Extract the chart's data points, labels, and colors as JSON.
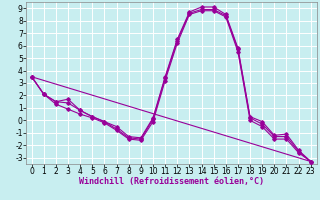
{
  "xlabel": "Windchill (Refroidissement éolien,°C)",
  "bg_color": "#c8eef0",
  "grid_color": "#ffffff",
  "line_color": "#990099",
  "xlim": [
    -0.5,
    23.5
  ],
  "ylim": [
    -3.5,
    9.5
  ],
  "xticks": [
    0,
    1,
    2,
    3,
    4,
    5,
    6,
    7,
    8,
    9,
    10,
    11,
    12,
    13,
    14,
    15,
    16,
    17,
    18,
    19,
    20,
    21,
    22,
    23
  ],
  "yticks": [
    -3,
    -2,
    -1,
    0,
    1,
    2,
    3,
    4,
    5,
    6,
    7,
    8,
    9
  ],
  "line1_x": [
    0,
    1,
    2,
    3,
    4,
    5,
    6,
    7,
    8,
    9,
    10,
    11,
    12,
    13,
    14,
    15,
    16,
    17,
    18,
    19,
    20,
    21,
    22,
    23
  ],
  "line1_y": [
    3.5,
    2.1,
    1.5,
    1.7,
    0.8,
    0.3,
    -0.1,
    -0.5,
    -1.3,
    -1.4,
    0.2,
    3.5,
    6.5,
    8.7,
    9.1,
    9.1,
    8.5,
    5.8,
    0.3,
    -0.1,
    -1.2,
    -1.1,
    -2.4,
    -3.3
  ],
  "line2_x": [
    0,
    1,
    2,
    3,
    4,
    5,
    6,
    7,
    8,
    9,
    10,
    11,
    12,
    13,
    14,
    15,
    16,
    17,
    18,
    19,
    20,
    21,
    22,
    23
  ],
  "line2_y": [
    3.5,
    2.1,
    1.5,
    1.4,
    0.8,
    0.3,
    -0.1,
    -0.7,
    -1.4,
    -1.5,
    0.1,
    3.4,
    6.4,
    8.6,
    8.9,
    8.9,
    8.4,
    5.7,
    0.2,
    -0.3,
    -1.3,
    -1.3,
    -2.5,
    -3.3
  ],
  "line3_x": [
    0,
    1,
    2,
    3,
    4,
    5,
    6,
    7,
    8,
    9,
    10,
    11,
    12,
    13,
    14,
    15,
    16,
    17,
    18,
    19,
    20,
    21,
    22,
    23
  ],
  "line3_y": [
    3.5,
    2.1,
    1.3,
    0.9,
    0.5,
    0.2,
    -0.2,
    -0.8,
    -1.5,
    -1.6,
    -0.1,
    3.2,
    6.2,
    8.5,
    8.8,
    8.8,
    8.3,
    5.5,
    0.0,
    -0.5,
    -1.5,
    -1.5,
    -2.6,
    -3.3
  ],
  "trend_x": [
    0,
    23
  ],
  "trend_y": [
    3.5,
    -3.3
  ],
  "xlabel_fontsize": 6,
  "tick_fontsize": 5.5
}
